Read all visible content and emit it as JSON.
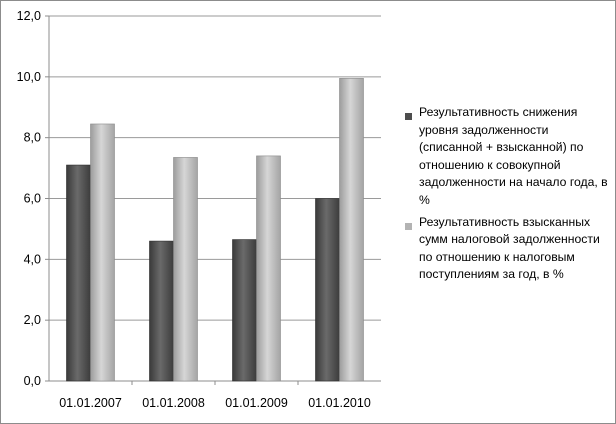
{
  "chart_data": {
    "type": "bar",
    "categories": [
      "01.01.2007",
      "01.01.2008",
      "01.01.2009",
      "01.01.2010"
    ],
    "series": [
      {
        "name": "Результативность снижения уровня задолженности (списанной + взысканной) по отношению к совокупной задолженности на начало года, в %",
        "values": [
          7.1,
          4.6,
          4.65,
          6.0
        ],
        "color": "#4d4d4d"
      },
      {
        "name": "Результативность взысканных сумм налоговой задолженности по отношению к налоговым поступлениям за год, в %",
        "values": [
          8.45,
          7.35,
          7.4,
          9.95
        ],
        "color": "#b3b3b3"
      }
    ],
    "y_ticks": [
      "0,0",
      "2,0",
      "4,0",
      "6,0",
      "8,0",
      "10,0",
      "12,0"
    ],
    "ylim": [
      0,
      12
    ],
    "grid": true,
    "legend_position": "right",
    "title": "",
    "xlabel": "",
    "ylabel": ""
  }
}
